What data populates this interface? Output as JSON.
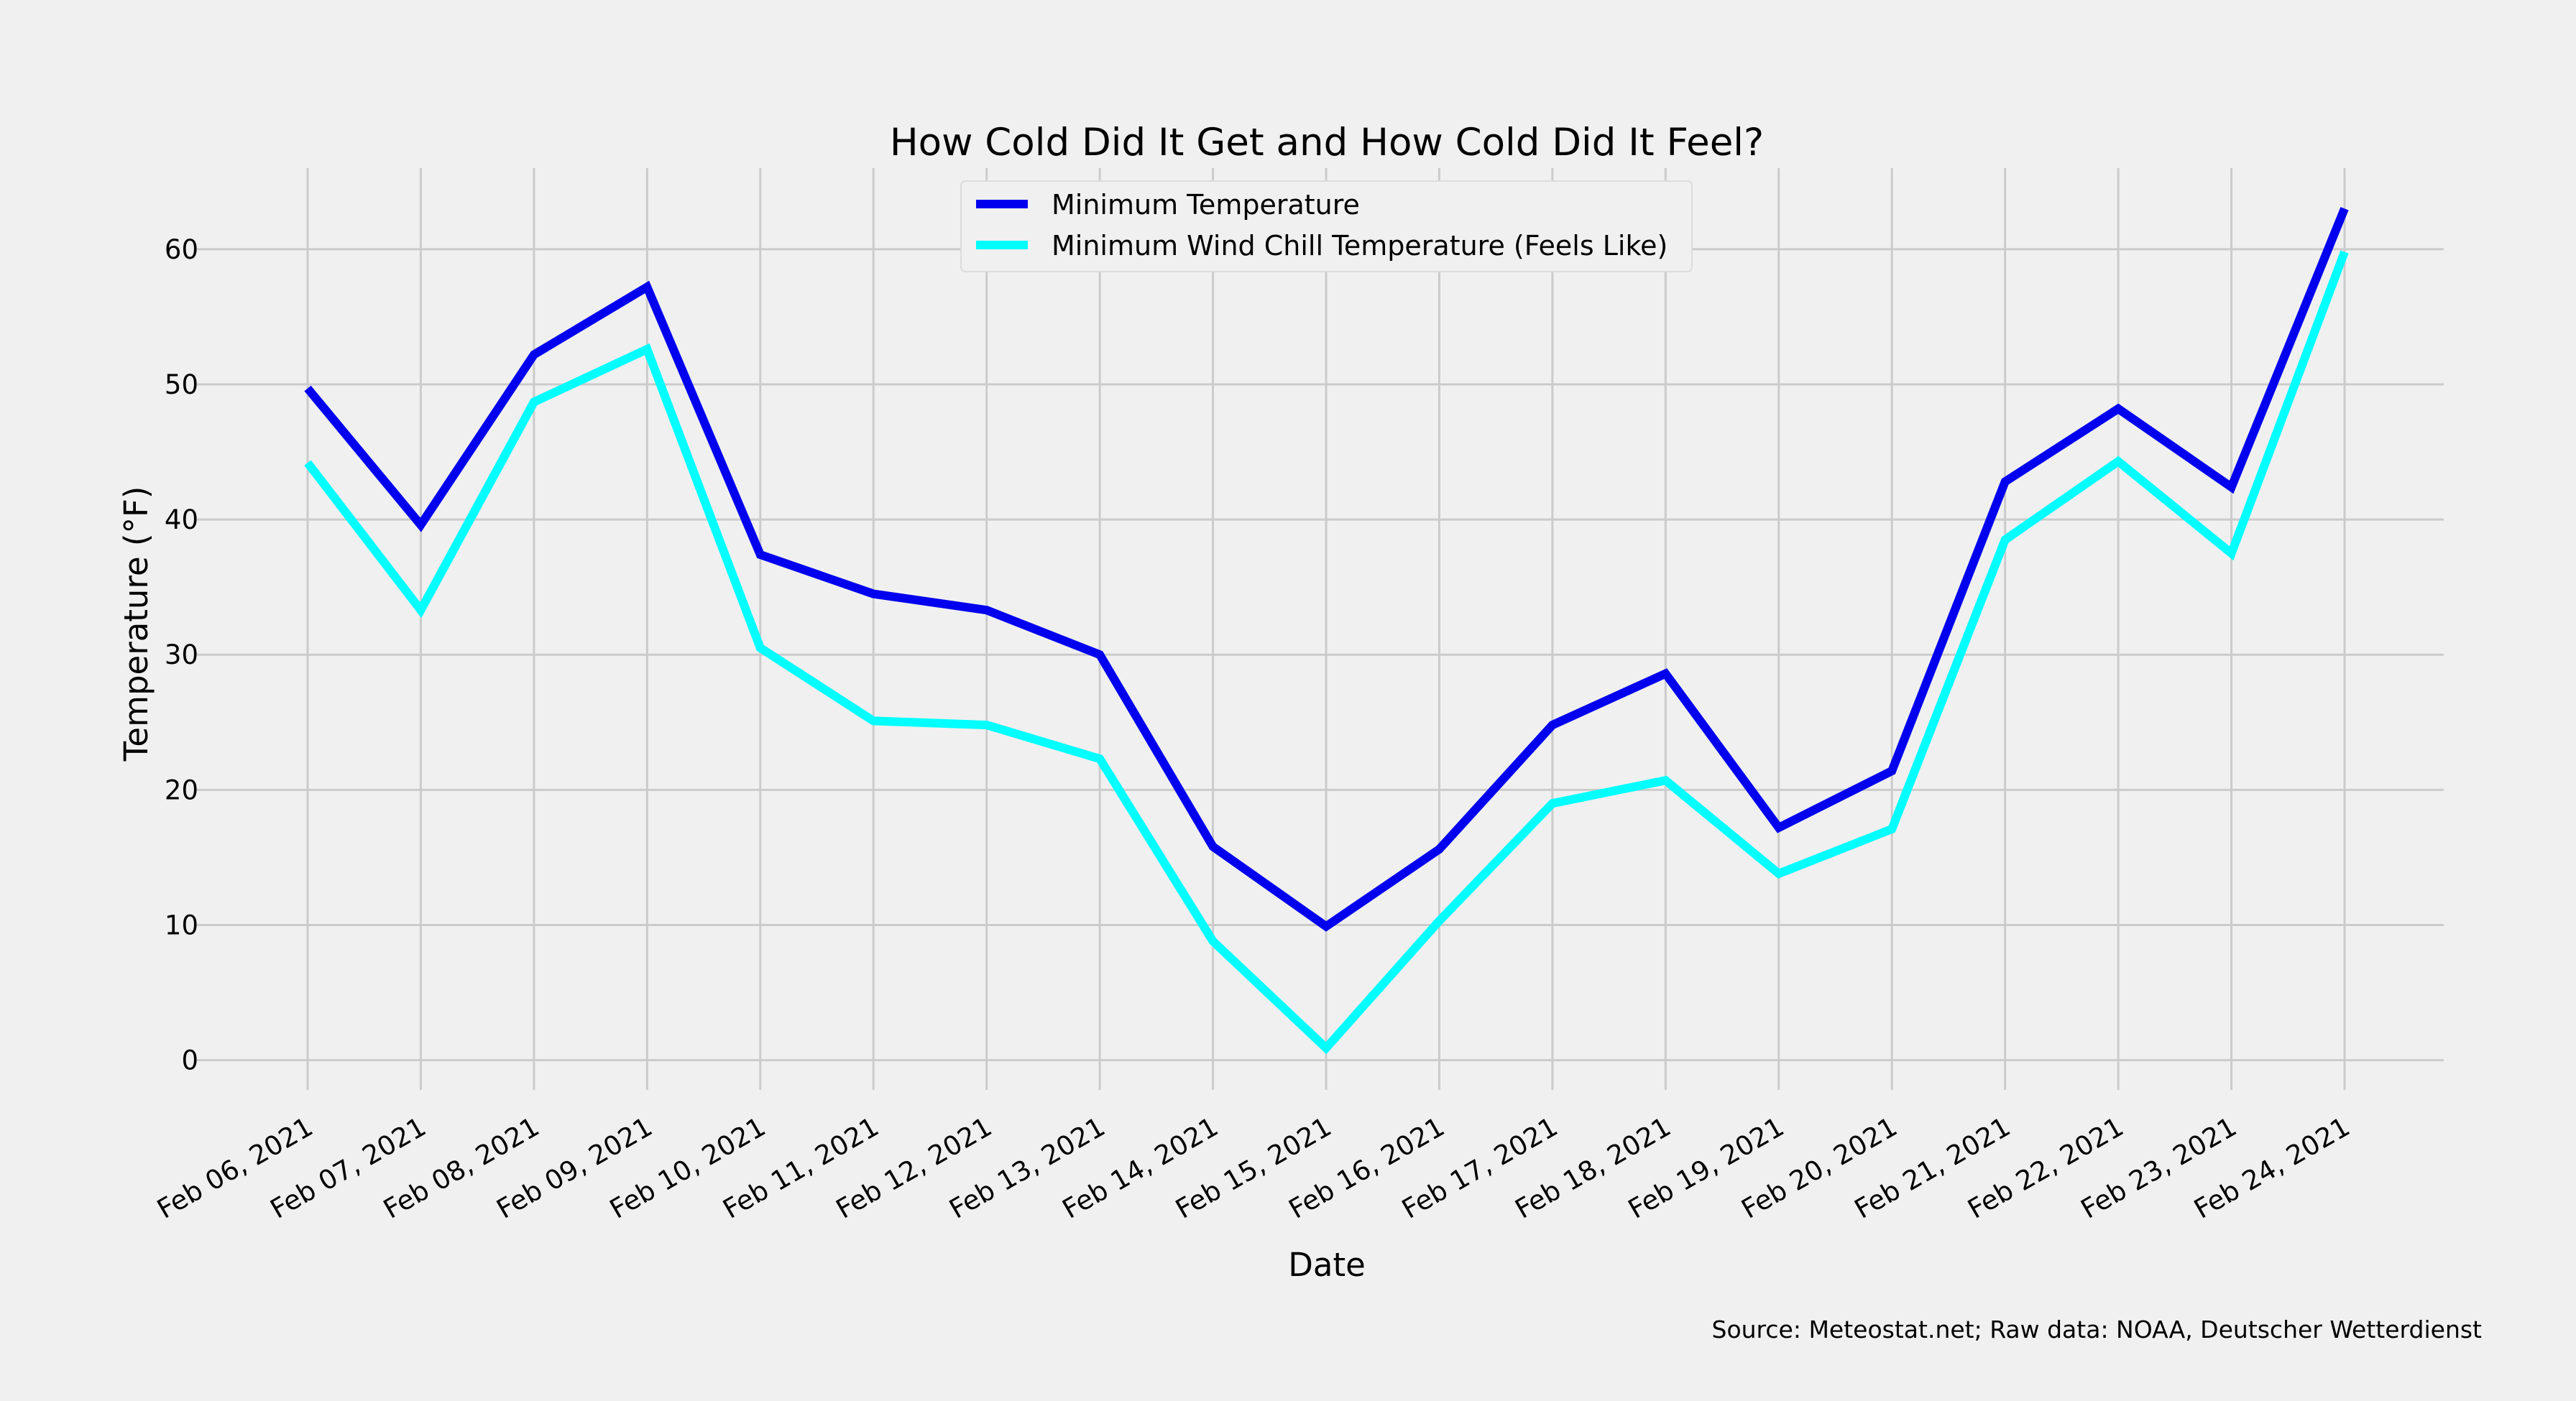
{
  "chart_data": {
    "type": "line",
    "title": "How Cold Did It Get and How Cold Did It Feel?",
    "xlabel": "Date",
    "ylabel": "Temperature (°F)",
    "source": "Source: Meteostat.net; Raw data: NOAA, Deutscher Wetterdienst",
    "categories": [
      "Feb 06, 2021",
      "Feb 07, 2021",
      "Feb 08, 2021",
      "Feb 09, 2021",
      "Feb 10, 2021",
      "Feb 11, 2021",
      "Feb 12, 2021",
      "Feb 13, 2021",
      "Feb 14, 2021",
      "Feb 15, 2021",
      "Feb 16, 2021",
      "Feb 17, 2021",
      "Feb 18, 2021",
      "Feb 19, 2021",
      "Feb 20, 2021",
      "Feb 21, 2021",
      "Feb 22, 2021",
      "Feb 23, 2021",
      "Feb 24, 2021"
    ],
    "series": [
      {
        "name": "Minimum Temperature",
        "color": "#0000ee",
        "values": [
          49.7,
          39.6,
          52.2,
          57.2,
          37.4,
          34.5,
          33.3,
          30.0,
          15.8,
          9.9,
          15.6,
          24.8,
          28.6,
          17.2,
          21.4,
          42.8,
          48.2,
          42.4,
          63.0
        ]
      },
      {
        "name": "Minimum Wind Chill Temperature (Feels Like)",
        "color": "#00ffff",
        "values": [
          44.2,
          33.3,
          48.7,
          52.6,
          30.5,
          25.1,
          24.8,
          22.3,
          8.8,
          0.9,
          10.3,
          19.0,
          20.7,
          13.8,
          17.1,
          38.5,
          44.3,
          37.5,
          59.8
        ]
      }
    ],
    "yticks": [
      0,
      10,
      20,
      30,
      40,
      50,
      60
    ],
    "ylim": [
      -2.2,
      66.0
    ],
    "grid": true,
    "legend_position": "upper-center",
    "background": "#f0f0f0",
    "grid_color": "#cbcbcb"
  }
}
